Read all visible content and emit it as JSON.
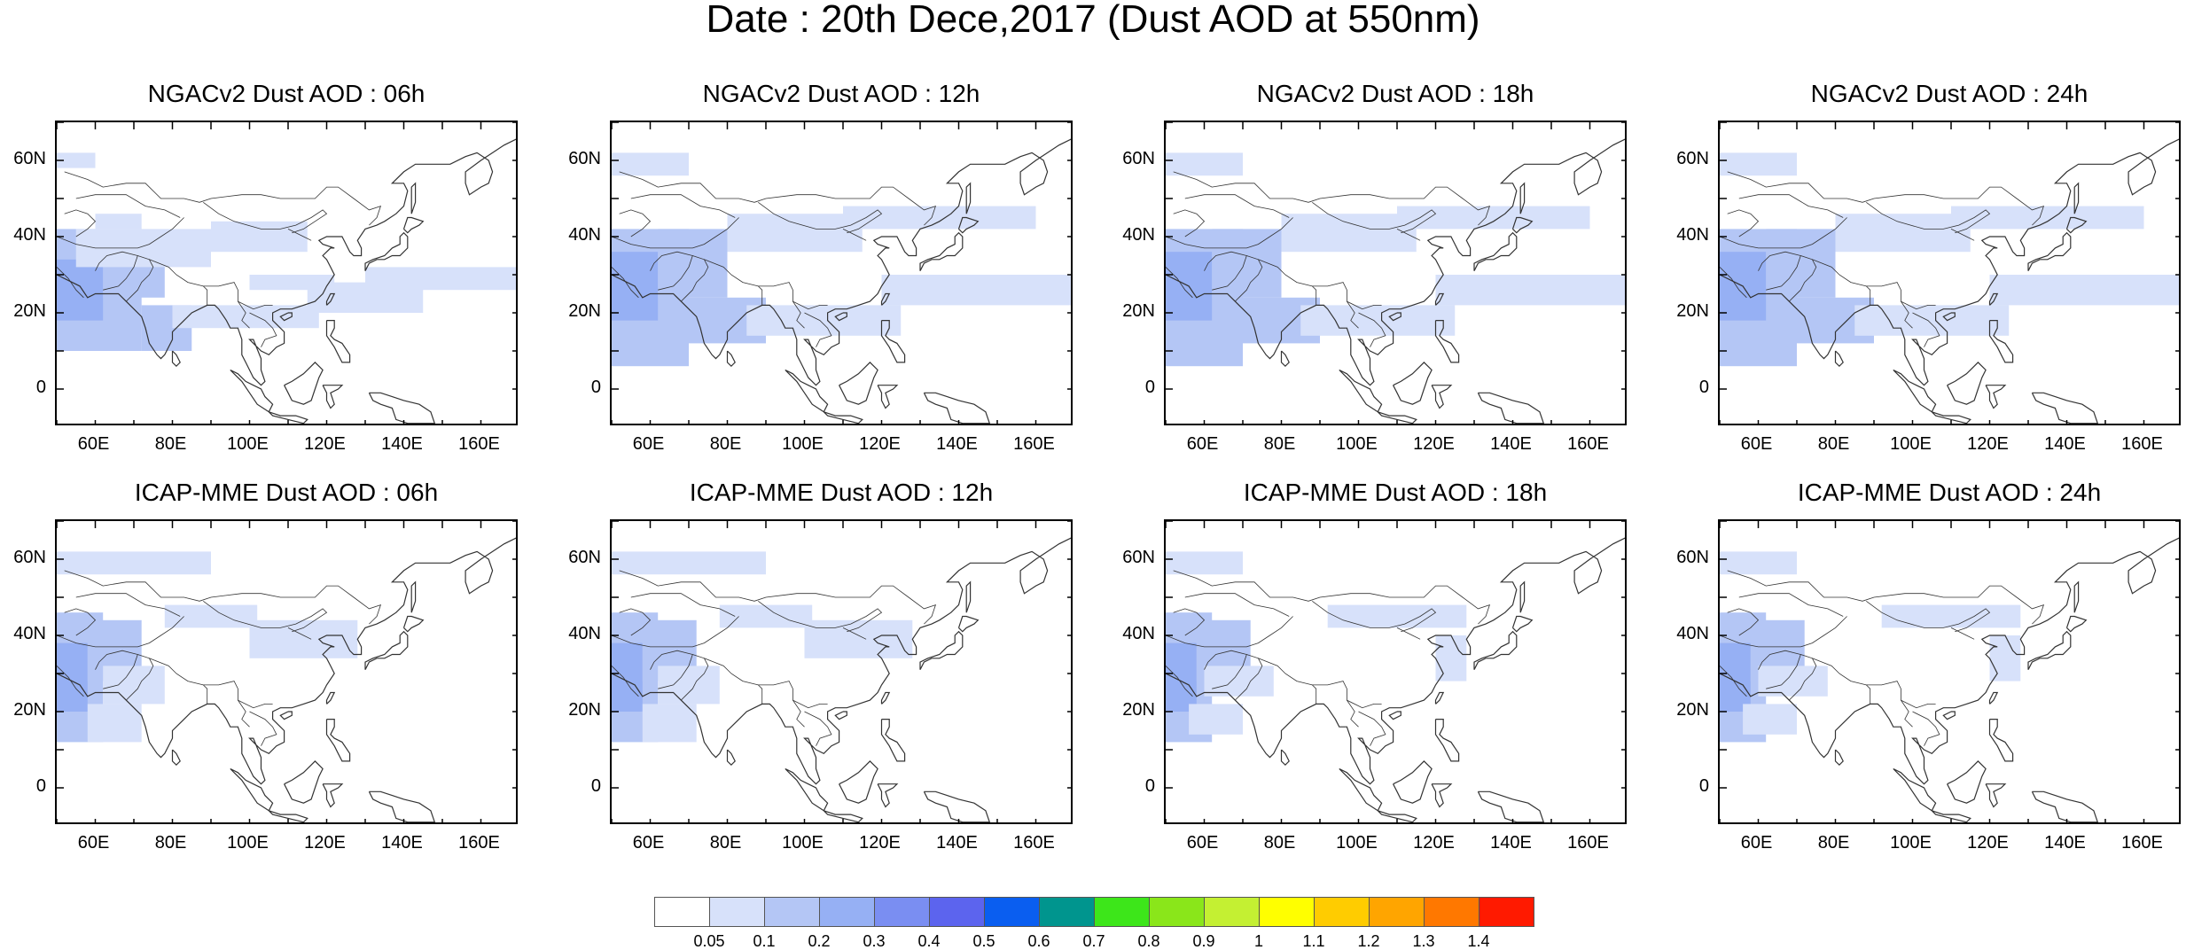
{
  "title": "Date : 20th Dece,2017 (Dust AOD at 550nm)",
  "panels": [
    {
      "title": "NGACv2 Dust AOD : 06h"
    },
    {
      "title": "NGACv2 Dust AOD : 12h"
    },
    {
      "title": "NGACv2 Dust AOD : 18h"
    },
    {
      "title": "NGACv2 Dust AOD : 24h"
    },
    {
      "title": "ICAP-MME Dust AOD : 06h"
    },
    {
      "title": "ICAP-MME Dust AOD : 12h"
    },
    {
      "title": "ICAP-MME Dust AOD : 18h"
    },
    {
      "title": "ICAP-MME Dust AOD : 24h"
    }
  ],
  "lat_ticks": [
    "60N",
    "40N",
    "20N",
    "0"
  ],
  "lon_ticks": [
    "60E",
    "80E",
    "100E",
    "120E",
    "140E",
    "160E"
  ],
  "colorbar": {
    "labels": [
      "0.05",
      "0.1",
      "0.2",
      "0.3",
      "0.4",
      "0.5",
      "0.6",
      "0.7",
      "0.8",
      "0.9",
      "1",
      "1.1",
      "1.2",
      "1.3",
      "1.4"
    ],
    "colors": [
      "#ffffff",
      "#d7e1fa",
      "#b4c6f5",
      "#96b0f4",
      "#7a8ef2",
      "#5c64ee",
      "#0a5ef0",
      "#00958e",
      "#3de61a",
      "#8ae61a",
      "#c4f032",
      "#ffff00",
      "#ffcc00",
      "#ffa500",
      "#ff7800",
      "#ff1a00"
    ]
  }
}
